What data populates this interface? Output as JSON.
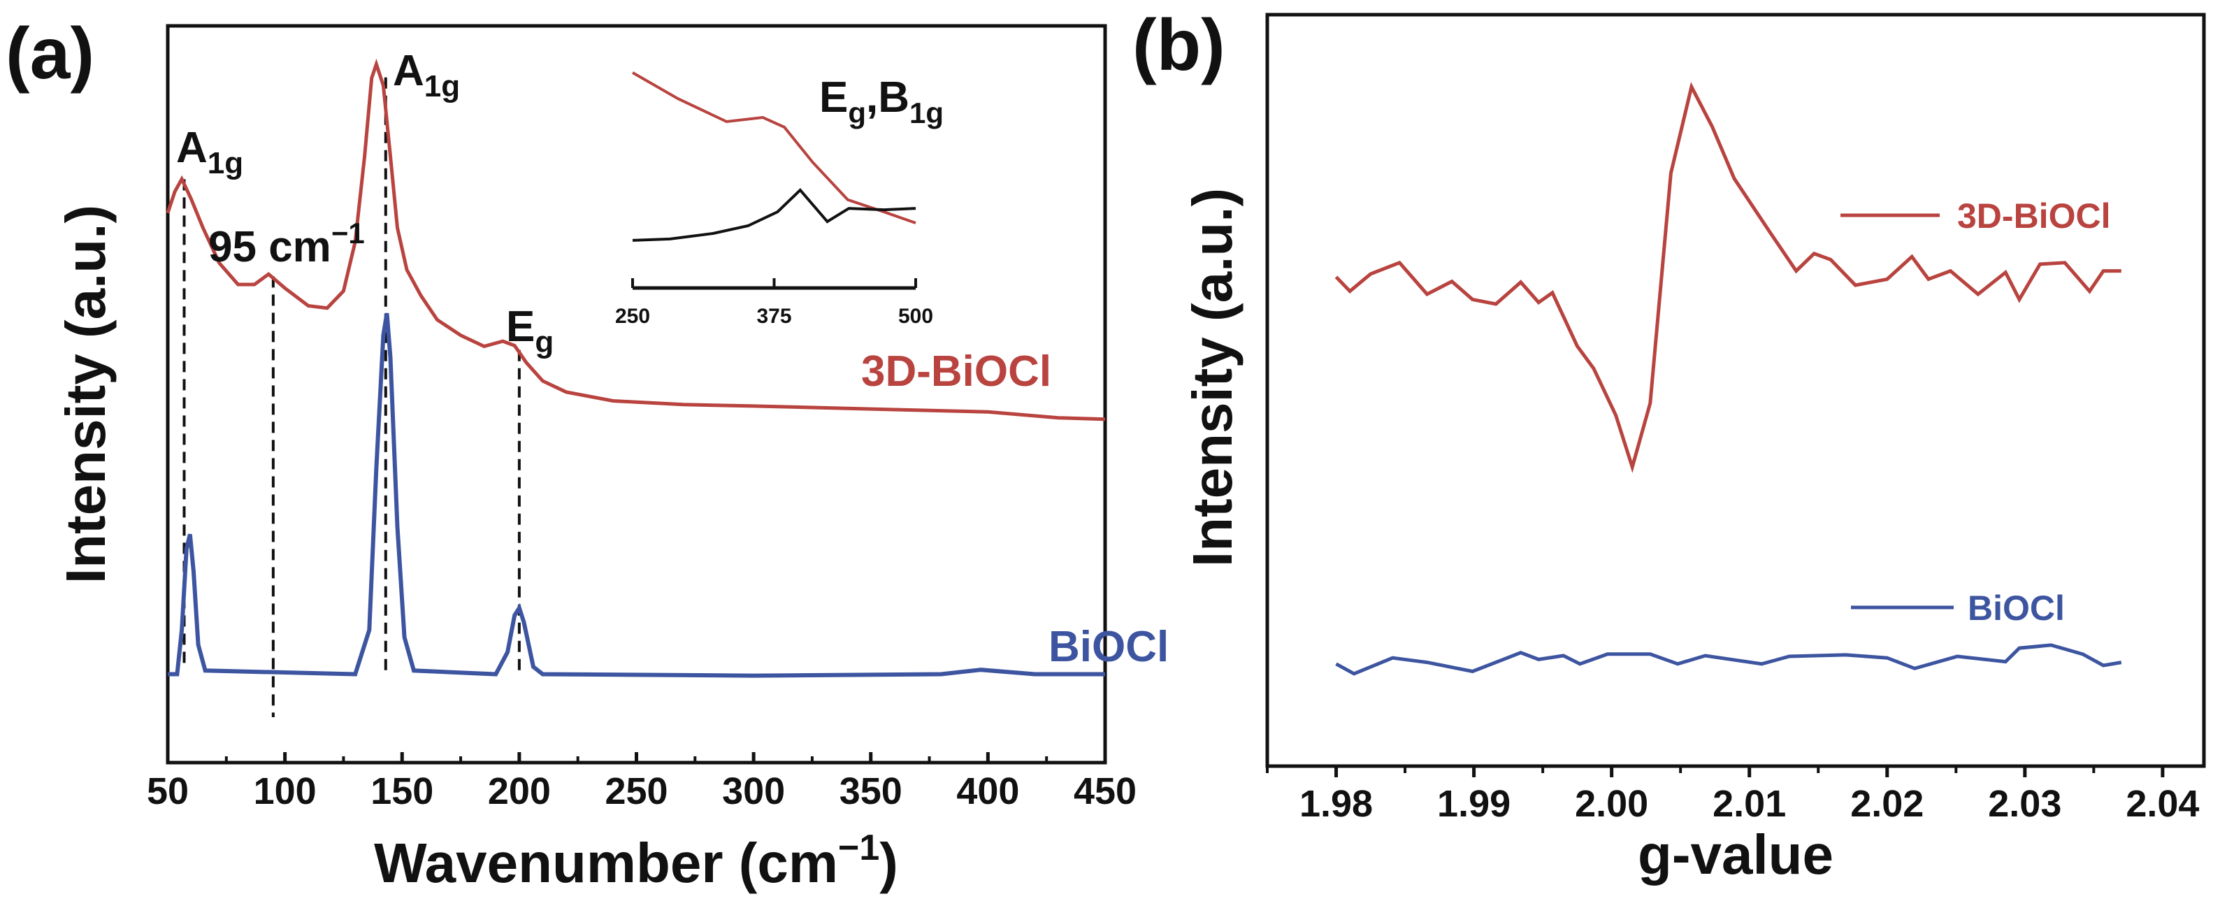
{
  "colors": {
    "red": "#b8433f",
    "blue": "#3d55a0",
    "black": "#111111"
  },
  "chart_data": [
    {
      "type": "line",
      "panel_label": "(a)",
      "xlabel": {
        "main": "Wavenumber (cm",
        "sup": "−1",
        "end": ")"
      },
      "ylabel": "Intensity (a.u.)",
      "xlim": [
        50,
        450
      ],
      "ylim": [
        0,
        100
      ],
      "xticks": [
        50,
        100,
        150,
        200,
        250,
        300,
        350,
        400,
        450
      ],
      "xtick_labels": [
        "50",
        "100",
        "150",
        "200",
        "250",
        "300",
        "350",
        "400",
        "450"
      ],
      "grid": false,
      "series": [
        {
          "name": "3D-BiOCl",
          "color": "#b8433f",
          "x": [
            50,
            53,
            56,
            60,
            65,
            72,
            80,
            87,
            93,
            100,
            110,
            118,
            125,
            130,
            134,
            137,
            139,
            142,
            145,
            148,
            152,
            158,
            165,
            175,
            185,
            193,
            198,
            203,
            210,
            220,
            240,
            270,
            300,
            350,
            400,
            430,
            450
          ],
          "y": [
            74.6,
            77.5,
            79.2,
            76.5,
            72.6,
            67.8,
            64.9,
            64.9,
            66.3,
            64.4,
            62.0,
            61.7,
            64.0,
            70.7,
            82.3,
            92.9,
            94.8,
            91.9,
            82.3,
            72.6,
            66.9,
            63.4,
            60.1,
            58.0,
            56.5,
            57.2,
            56.6,
            54.3,
            51.8,
            50.3,
            49.1,
            48.6,
            48.4,
            48.0,
            47.6,
            46.8,
            46.6
          ]
        },
        {
          "name": "BiOCl",
          "color": "#3d55a0",
          "x": [
            50,
            54,
            56,
            58,
            59.5,
            61,
            63,
            66,
            130,
            136,
            139,
            142,
            143.5,
            145,
            148,
            151,
            155,
            190,
            195,
            198,
            200,
            202,
            206,
            210,
            300,
            380,
            397,
            420,
            450
          ],
          "y": [
            12,
            12,
            18,
            29,
            31,
            26,
            16,
            12.5,
            12,
            18,
            40,
            58,
            61,
            55,
            32,
            17,
            12.5,
            12,
            15,
            20,
            21,
            19,
            13,
            12,
            11.8,
            12,
            12.6,
            12,
            12
          ]
        }
      ],
      "series_labels": [
        "3D-BiOCl",
        "BiOCl"
      ],
      "annotations": [
        {
          "main": "A",
          "sub": "1g",
          "x": 57
        },
        {
          "main": "95 cm",
          "sup": "−1",
          "x": 95
        },
        {
          "main": "A",
          "sub": "1g",
          "x": 143
        },
        {
          "main": "E",
          "sub": "g",
          "x": 200
        }
      ],
      "inset": {
        "xlim": [
          250,
          500
        ],
        "ylim": [
          0,
          100
        ],
        "xticks": [
          250,
          375,
          500
        ],
        "xtick_labels": [
          "250",
          "375",
          "500"
        ],
        "label": {
          "e": "E",
          "esub": "g",
          "comma": ",B",
          "bsub": "1g"
        },
        "series": [
          {
            "name": "3D-BiOCl",
            "color": "#b8433f",
            "x": [
              250,
              290,
              333,
              365,
              384,
              409,
              440,
              472,
              500
            ],
            "y": [
              92.8,
              81.6,
              71.7,
              73.5,
              69.3,
              54.2,
              38.0,
              32.8,
              28.0
            ]
          },
          {
            "name": "BiOCl",
            "color": "#111111",
            "x": [
              250,
              283,
              321,
              352,
              378,
              398,
              422,
              441,
              472,
              500
            ],
            "y": [
              20.5,
              21.1,
              23.5,
              26.8,
              32.8,
              42.2,
              28.6,
              34.3,
              33.7,
              34.3
            ]
          }
        ]
      }
    },
    {
      "type": "line",
      "panel_label": "(b)",
      "xlabel": "g-value",
      "ylabel": "Intensity (a.u.)",
      "xlim": [
        1.975,
        2.043
      ],
      "ylim": [
        0,
        100
      ],
      "xticks": [
        1.98,
        1.99,
        2.0,
        2.01,
        2.02,
        2.03,
        2.04
      ],
      "xtick_labels": [
        "1.98",
        "1.99",
        "2.00",
        "2.01",
        "2.02",
        "2.03",
        "2.04"
      ],
      "grid": false,
      "legend": [
        "3D-BiOCl",
        "BiOCl"
      ],
      "series": [
        {
          "name": "3D-BiOCl",
          "color": "#b8433f",
          "x": [
            1.98,
            1.981,
            1.9825,
            1.9846,
            1.9866,
            1.9884,
            1.9899,
            1.9916,
            1.9934,
            1.9947,
            1.9957,
            1.9975,
            1.9987,
            2.0003,
            2.0015,
            2.0028,
            2.0043,
            2.0058,
            2.0073,
            2.0089,
            2.0114,
            2.0134,
            2.0147,
            2.0159,
            2.0177,
            2.02,
            2.0218,
            2.023,
            2.0246,
            2.0266,
            2.0286,
            2.0296,
            2.0311,
            2.0329,
            2.0347,
            2.0357,
            2.037
          ],
          "y": [
            65.1,
            63.2,
            65.5,
            67.0,
            62.8,
            64.5,
            62.1,
            61.5,
            64.4,
            61.7,
            63.0,
            55.9,
            52.9,
            46.7,
            39.8,
            48.3,
            78.9,
            90.4,
            85.1,
            78.2,
            71.3,
            65.9,
            68.2,
            67.4,
            64.0,
            64.8,
            67.8,
            64.8,
            65.9,
            62.8,
            65.7,
            62.1,
            66.8,
            67.0,
            63.2,
            65.9,
            65.9
          ]
        },
        {
          "name": "BiOCl",
          "color": "#3d55a0",
          "x": [
            1.98,
            1.9813,
            1.9841,
            1.9866,
            1.9899,
            1.9934,
            1.9947,
            1.9965,
            1.9977,
            1.9997,
            2.0028,
            2.0048,
            2.0068,
            2.0109,
            2.0129,
            2.017,
            2.02,
            2.022,
            2.0251,
            2.0286,
            2.0296,
            2.0319,
            2.0342,
            2.0357,
            2.037
          ],
          "y": [
            13.6,
            12.3,
            14.4,
            13.8,
            12.6,
            15.1,
            14.2,
            14.7,
            13.6,
            14.9,
            14.9,
            13.6,
            14.7,
            13.6,
            14.6,
            14.8,
            14.4,
            13.0,
            14.6,
            13.9,
            15.7,
            16.1,
            14.9,
            13.4,
            13.8
          ]
        }
      ]
    }
  ]
}
